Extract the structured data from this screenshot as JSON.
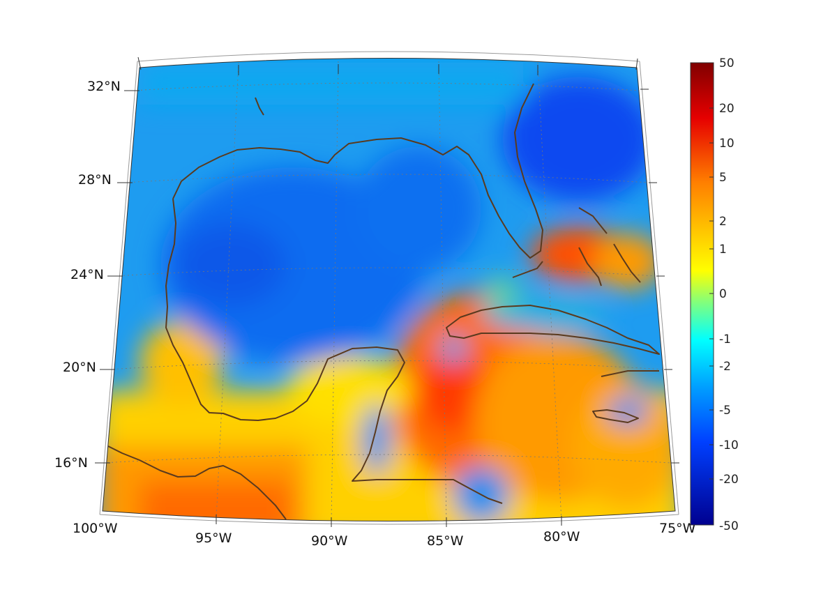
{
  "map": {
    "lat_labels": [
      "32°N",
      "28°N",
      "24°N",
      "20°N",
      "16°N"
    ],
    "lon_labels": [
      "100°W",
      "95°W",
      "90°W",
      "85°W",
      "80°W",
      "75°W"
    ]
  },
  "colorbar": {
    "ticks": [
      "50",
      "20",
      "10",
      "5",
      "2",
      "1",
      "0",
      "-1",
      "-2",
      "-5",
      "-10",
      "-20",
      "-50"
    ],
    "top_color": "#800000",
    "bottom_color": "#00008f"
  },
  "colors": {
    "coastline": "#5a3a1e",
    "grid": "#777777"
  }
}
